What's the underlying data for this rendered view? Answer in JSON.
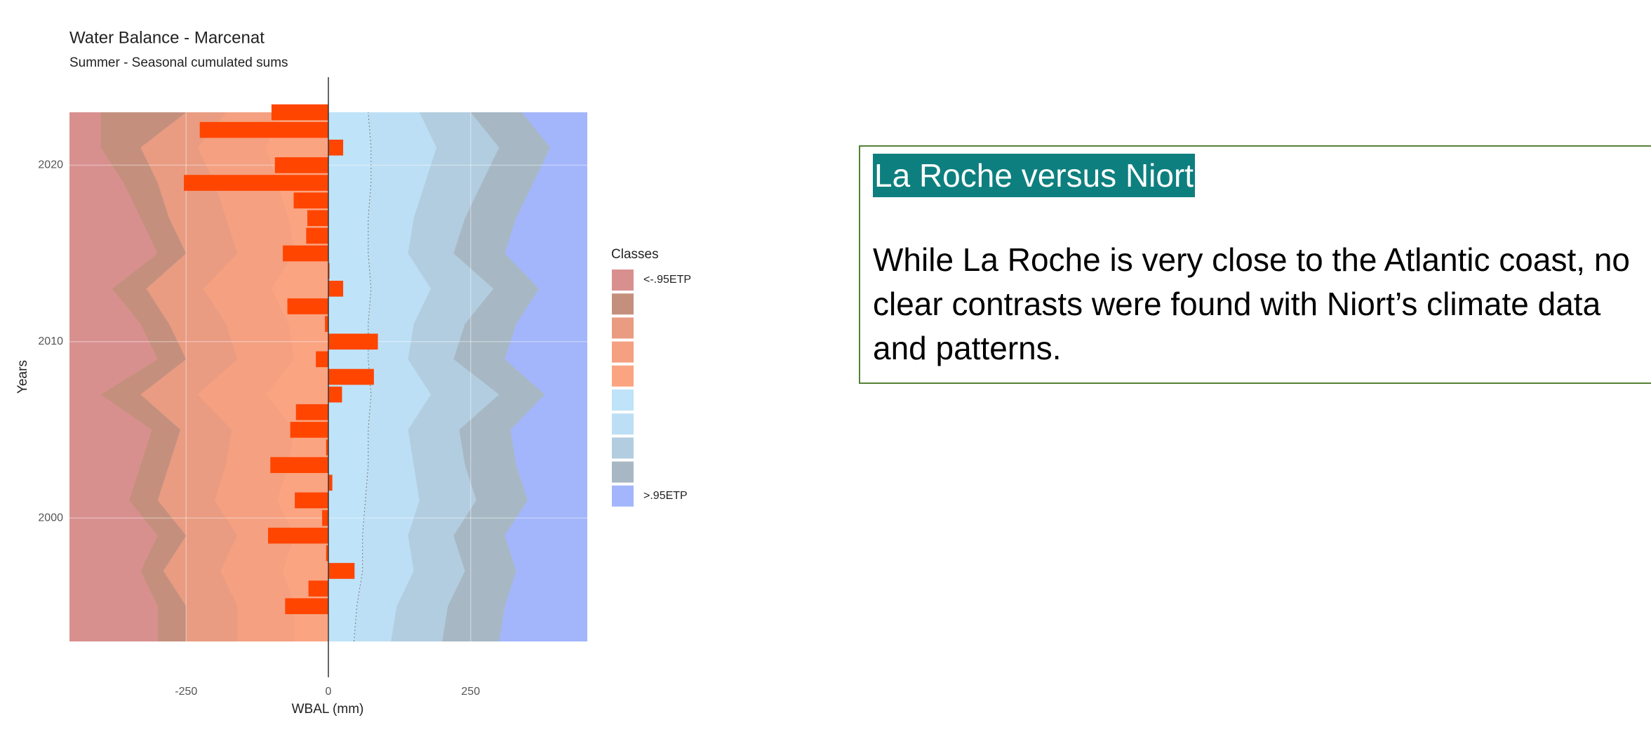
{
  "chart_data": {
    "type": "bar",
    "orientation": "horizontal",
    "title": "Water Balance - Marcenat",
    "subtitle": "Summer - Seasonal cumulated sums",
    "x_label": "WBAL (mm)",
    "y_label": "Years",
    "y": [
      2023,
      2022,
      2021,
      2020,
      2019,
      2018,
      2017,
      2016,
      2015,
      2014,
      2013,
      2012,
      2011,
      2010,
      2009,
      2008,
      2007,
      2006,
      2005,
      2004,
      2003,
      2002,
      2001,
      2000,
      1999,
      1998,
      1997,
      1996,
      1995
    ],
    "values": [
      -100,
      -226,
      26,
      -94,
      -254,
      -61,
      -37,
      -39,
      -80,
      2,
      26,
      -72,
      -6,
      87,
      -22,
      80,
      24,
      -57,
      -67,
      -4,
      -102,
      7,
      -59,
      -11,
      -106,
      -4,
      46,
      -35,
      -76
    ],
    "color": "#ff4500",
    "xlim": [
      -455,
      455
    ],
    "xticks": [
      -250,
      0,
      250
    ],
    "ylim": [
      1993,
      2023
    ],
    "yticks": [
      2000,
      2010,
      2020
    ],
    "grid": true,
    "legend_title": "Classes",
    "legend": [
      "<-.95ETP",
      null,
      null,
      null,
      null,
      null,
      null,
      null,
      null,
      ">.95ETP"
    ],
    "class_colors": [
      "#d8908f",
      "#c4907d",
      "#e99c82",
      "#f4a081",
      "#fba482",
      "#bfe3f8",
      "#bddff5",
      "#b2cde0",
      "#a7b8c4",
      "#a3b6fb"
    ],
    "bands": {
      "x": [
        1993,
        1995,
        1997,
        1999,
        2001,
        2003,
        2005,
        2007,
        2009,
        2011,
        2013,
        2015,
        2017,
        2019,
        2021,
        2023
      ],
      "boundaries": [
        [
          -300,
          -300,
          -330,
          -300,
          -350,
          -330,
          -310,
          -400,
          -300,
          -330,
          -380,
          -300,
          -330,
          -360,
          -400,
          -400
        ],
        [
          -250,
          -250,
          -290,
          -250,
          -300,
          -280,
          -260,
          -330,
          -250,
          -280,
          -320,
          -250,
          -280,
          -300,
          -330,
          -250
        ],
        [
          -160,
          -160,
          -190,
          -160,
          -200,
          -180,
          -170,
          -230,
          -160,
          -180,
          -220,
          -160,
          -180,
          -200,
          -230,
          -180
        ],
        [
          -60,
          -60,
          -80,
          -60,
          -90,
          -70,
          -60,
          -110,
          -60,
          -70,
          -100,
          -60,
          -70,
          -90,
          -110,
          -80
        ],
        [
          0,
          0,
          0,
          0,
          0,
          0,
          0,
          0,
          0,
          0,
          0,
          0,
          0,
          0,
          0,
          0
        ],
        [
          45,
          50,
          60,
          60,
          65,
          70,
          70,
          75,
          70,
          70,
          75,
          70,
          70,
          75,
          75,
          70
        ],
        [
          110,
          120,
          150,
          140,
          160,
          150,
          140,
          180,
          140,
          150,
          180,
          140,
          150,
          170,
          190,
          160
        ],
        [
          200,
          210,
          240,
          220,
          260,
          240,
          230,
          300,
          220,
          240,
          290,
          220,
          240,
          270,
          300,
          250
        ],
        [
          300,
          310,
          330,
          310,
          350,
          330,
          320,
          380,
          310,
          330,
          370,
          310,
          330,
          360,
          390,
          340
        ]
      ]
    }
  },
  "text_box": {
    "title": "La Roche versus Niort",
    "lines": [
      "While La Roche is very close to the Atlantic coast, no",
      "clear contrasts were found with Niort’s climate data",
      "and patterns."
    ]
  }
}
